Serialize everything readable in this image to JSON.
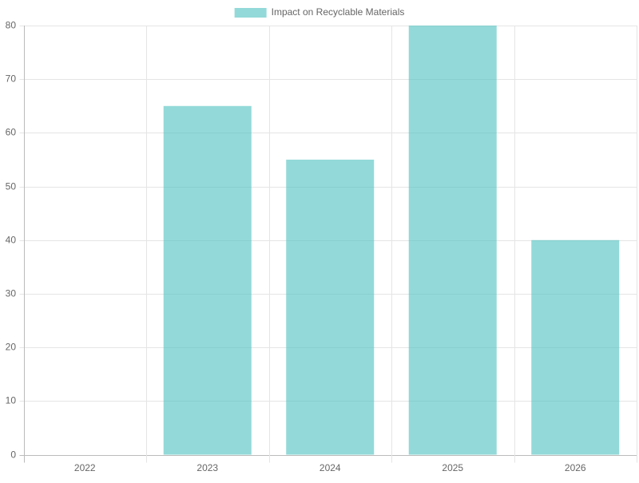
{
  "chart_data": {
    "type": "bar",
    "categories": [
      "2022",
      "2023",
      "2024",
      "2025",
      "2026"
    ],
    "series": [
      {
        "name": "Impact on Recyclable Materials",
        "color": "rgba(75, 192, 192, 0.6)",
        "values": [
          0,
          65,
          55,
          80,
          40
        ]
      }
    ],
    "ylim": [
      0,
      80
    ],
    "yticks": [
      0,
      10,
      20,
      30,
      40,
      50,
      60,
      70,
      80
    ],
    "grid": true,
    "legend": "top"
  }
}
